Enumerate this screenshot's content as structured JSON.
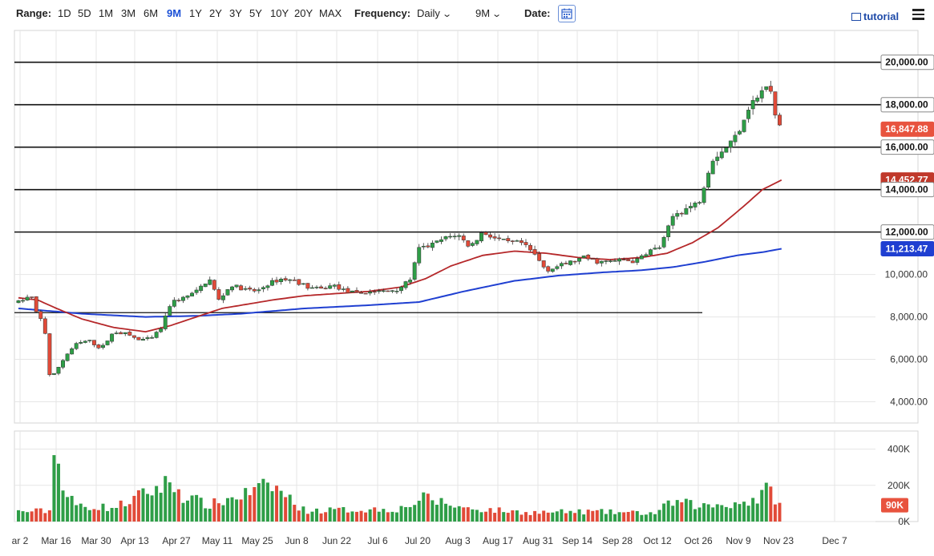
{
  "toolbar": {
    "range_label": "Range:",
    "ranges": [
      "1D",
      "5D",
      "1M",
      "3M",
      "6M",
      "9M",
      "1Y",
      "2Y",
      "3Y",
      "5Y",
      "10Y",
      "20Y",
      "MAX"
    ],
    "active_range": "9M",
    "frequency_label": "Frequency:",
    "frequency_value": "Daily",
    "period_value": "9M",
    "date_label": "Date:",
    "tutorial_label": "tutorial"
  },
  "colors": {
    "up": "#2e9e47",
    "down": "#e14a38",
    "ma_short": "#b5282a",
    "ma_long": "#1f3fd1",
    "range_active": "#1a4fd6"
  },
  "chart_data": {
    "type": "candlestick",
    "x_tick_labels": [
      "ar 2",
      "Mar 16",
      "Mar 30",
      "Apr 13",
      "Apr 27",
      "May 11",
      "May 25",
      "Jun 8",
      "Jun 22",
      "Jul 6",
      "Jul 20",
      "Aug 3",
      "Aug 17",
      "Aug 31",
      "Sep 14",
      "Sep 28",
      "Oct 12",
      "Oct 26",
      "Nov 9",
      "Nov 23",
      "Dec 7"
    ],
    "y_tick_labels": [
      "20,000.00",
      "18,000.00",
      "16,000.00",
      "14,000.00",
      "12,000.00",
      "10,000.00",
      "8,000.00",
      "6,000.00",
      "4,000.00"
    ],
    "y_ticks": [
      20000,
      18000,
      16000,
      14000,
      12000,
      10000,
      8000,
      6000,
      4000
    ],
    "ylim": [
      3000,
      21500
    ],
    "horizontal_lines": [
      20000,
      18000,
      16000,
      14000,
      12000
    ],
    "support_line_level": 8200,
    "volume_tick_labels": [
      "400K",
      "200K",
      "0K"
    ],
    "volume_ticks": [
      400000,
      200000,
      0
    ],
    "volume_max": 500000,
    "price_tags": [
      {
        "label": "20,000.00",
        "value": 20000,
        "style": "white"
      },
      {
        "label": "18,000.00",
        "value": 18000,
        "style": "white"
      },
      {
        "label": "16,847.88",
        "value": 16847.88,
        "style": "red"
      },
      {
        "label": "16,000.00",
        "value": 16000,
        "style": "white"
      },
      {
        "label": "14,452.77",
        "value": 14452.77,
        "style": "darkred"
      },
      {
        "label": "14,000.00",
        "value": 14000,
        "style": "white"
      },
      {
        "label": "12,000.00",
        "value": 12000,
        "style": "white"
      },
      {
        "label": "11,213.47",
        "value": 11213.47,
        "style": "blue"
      }
    ],
    "volume_tag": {
      "label": "90K",
      "value": 90000
    },
    "anchors": {
      "price": [
        [
          0,
          8700
        ],
        [
          4,
          9000
        ],
        [
          6,
          8000
        ],
        [
          8,
          7800
        ],
        [
          10,
          5000
        ],
        [
          12,
          5500
        ],
        [
          15,
          6200
        ],
        [
          18,
          6700
        ],
        [
          22,
          6900
        ],
        [
          26,
          6500
        ],
        [
          30,
          7300
        ],
        [
          34,
          7200
        ],
        [
          38,
          6900
        ],
        [
          42,
          7000
        ],
        [
          45,
          7500
        ],
        [
          48,
          8700
        ],
        [
          52,
          8900
        ],
        [
          56,
          9200
        ],
        [
          60,
          9800
        ],
        [
          63,
          8800
        ],
        [
          67,
          9500
        ],
        [
          71,
          9300
        ],
        [
          75,
          9200
        ],
        [
          79,
          9600
        ],
        [
          83,
          9800
        ],
        [
          87,
          9700
        ],
        [
          91,
          9400
        ],
        [
          95,
          9300
        ],
        [
          99,
          9500
        ],
        [
          103,
          9200
        ],
        [
          107,
          9100
        ],
        [
          111,
          9200
        ],
        [
          115,
          9200
        ],
        [
          119,
          9300
        ],
        [
          123,
          9700
        ],
        [
          126,
          11200
        ],
        [
          130,
          11400
        ],
        [
          134,
          11700
        ],
        [
          138,
          11900
        ],
        [
          142,
          11300
        ],
        [
          146,
          12000
        ],
        [
          150,
          11700
        ],
        [
          154,
          11500
        ],
        [
          158,
          11500
        ],
        [
          162,
          11000
        ],
        [
          166,
          10200
        ],
        [
          170,
          10400
        ],
        [
          174,
          10600
        ],
        [
          178,
          10800
        ],
        [
          182,
          10600
        ],
        [
          186,
          10600
        ],
        [
          190,
          10700
        ],
        [
          194,
          10600
        ],
        [
          198,
          11100
        ],
        [
          202,
          11300
        ],
        [
          206,
          12800
        ],
        [
          210,
          13100
        ],
        [
          214,
          13400
        ],
        [
          218,
          15400
        ],
        [
          222,
          15900
        ],
        [
          226,
          16600
        ],
        [
          230,
          18000
        ],
        [
          234,
          18600
        ],
        [
          236,
          19000
        ],
        [
          238,
          17500
        ],
        [
          240,
          16850
        ]
      ],
      "ma_short": [
        [
          0,
          8900
        ],
        [
          6,
          8800
        ],
        [
          12,
          8400
        ],
        [
          20,
          7900
        ],
        [
          30,
          7500
        ],
        [
          40,
          7300
        ],
        [
          48,
          7600
        ],
        [
          56,
          8000
        ],
        [
          64,
          8400
        ],
        [
          72,
          8600
        ],
        [
          80,
          8800
        ],
        [
          90,
          9000
        ],
        [
          100,
          9100
        ],
        [
          110,
          9200
        ],
        [
          120,
          9400
        ],
        [
          128,
          9800
        ],
        [
          136,
          10400
        ],
        [
          146,
          10900
        ],
        [
          156,
          11100
        ],
        [
          166,
          11000
        ],
        [
          176,
          10800
        ],
        [
          186,
          10700
        ],
        [
          196,
          10800
        ],
        [
          204,
          11000
        ],
        [
          212,
          11500
        ],
        [
          220,
          12200
        ],
        [
          228,
          13200
        ],
        [
          234,
          14000
        ],
        [
          240,
          14452.77
        ]
      ],
      "ma_long": [
        [
          0,
          8400
        ],
        [
          20,
          8150
        ],
        [
          40,
          8000
        ],
        [
          56,
          8050
        ],
        [
          70,
          8150
        ],
        [
          90,
          8400
        ],
        [
          110,
          8550
        ],
        [
          126,
          8700
        ],
        [
          140,
          9200
        ],
        [
          156,
          9700
        ],
        [
          170,
          9950
        ],
        [
          184,
          10100
        ],
        [
          196,
          10200
        ],
        [
          206,
          10350
        ],
        [
          216,
          10600
        ],
        [
          226,
          10900
        ],
        [
          234,
          11050
        ],
        [
          240,
          11213.47
        ]
      ],
      "volume": [
        [
          0,
          55000
        ],
        [
          10,
          60000
        ],
        [
          12,
          550000
        ],
        [
          14,
          170000
        ],
        [
          18,
          90000
        ],
        [
          30,
          75000
        ],
        [
          48,
          220000
        ],
        [
          52,
          140000
        ],
        [
          60,
          90000
        ],
        [
          80,
          200000
        ],
        [
          90,
          60000
        ],
        [
          120,
          70000
        ],
        [
          128,
          130000
        ],
        [
          140,
          75000
        ],
        [
          160,
          50000
        ],
        [
          180,
          55000
        ],
        [
          200,
          45000
        ],
        [
          206,
          110000
        ],
        [
          215,
          85000
        ],
        [
          225,
          100000
        ],
        [
          232,
          120000
        ],
        [
          236,
          180000
        ],
        [
          240,
          90000
        ]
      ]
    }
  }
}
